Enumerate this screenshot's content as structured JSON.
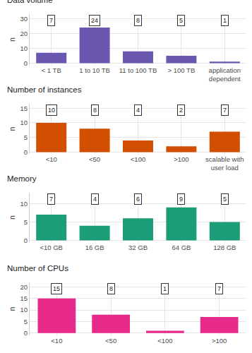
{
  "chart_data": [
    {
      "type": "bar",
      "title": "Data volume",
      "y_label": "n",
      "categories": [
        "< 1 TB",
        "1 to 10 TB",
        "11 to 100 TB",
        "> 100 TB",
        "application dependent"
      ],
      "values": [
        7,
        24,
        8,
        5,
        1
      ],
      "color": "#6a57b0",
      "ylim": [
        -1.2,
        33
      ],
      "yticks": [
        0,
        10,
        20,
        30
      ],
      "grid": true,
      "data_labels": true
    },
    {
      "type": "bar",
      "title": "Number of instances",
      "y_label": "n",
      "categories": [
        "<10",
        "<50",
        "<100",
        ">100",
        "scalable with user load"
      ],
      "values": [
        10,
        8,
        4,
        2,
        7
      ],
      "color": "#d24e01",
      "ylim": [
        -0.6,
        16.5
      ],
      "yticks": [
        0,
        5,
        10,
        15
      ],
      "grid": true,
      "data_labels": true
    },
    {
      "type": "bar",
      "title": "Memory",
      "y_label": "n",
      "categories": [
        "<10 GB",
        "16 GB",
        "32 GB",
        "64 GB",
        "128 GB"
      ],
      "values": [
        7,
        4,
        6,
        9,
        5
      ],
      "color": "#1b9e77",
      "ylim": [
        -0.5,
        13
      ],
      "yticks": [
        0,
        5,
        10
      ],
      "grid": true,
      "data_labels": true
    },
    {
      "type": "bar",
      "title": "Number of CPUs",
      "y_label": "n",
      "categories": [
        "<10",
        "<50",
        "<100",
        ">100"
      ],
      "values": [
        15,
        8,
        1,
        7
      ],
      "color": "#e7298a",
      "ylim": [
        -1,
        22
      ],
      "yticks": [
        0,
        5,
        10,
        15,
        20
      ],
      "grid": true,
      "data_labels": true
    }
  ]
}
